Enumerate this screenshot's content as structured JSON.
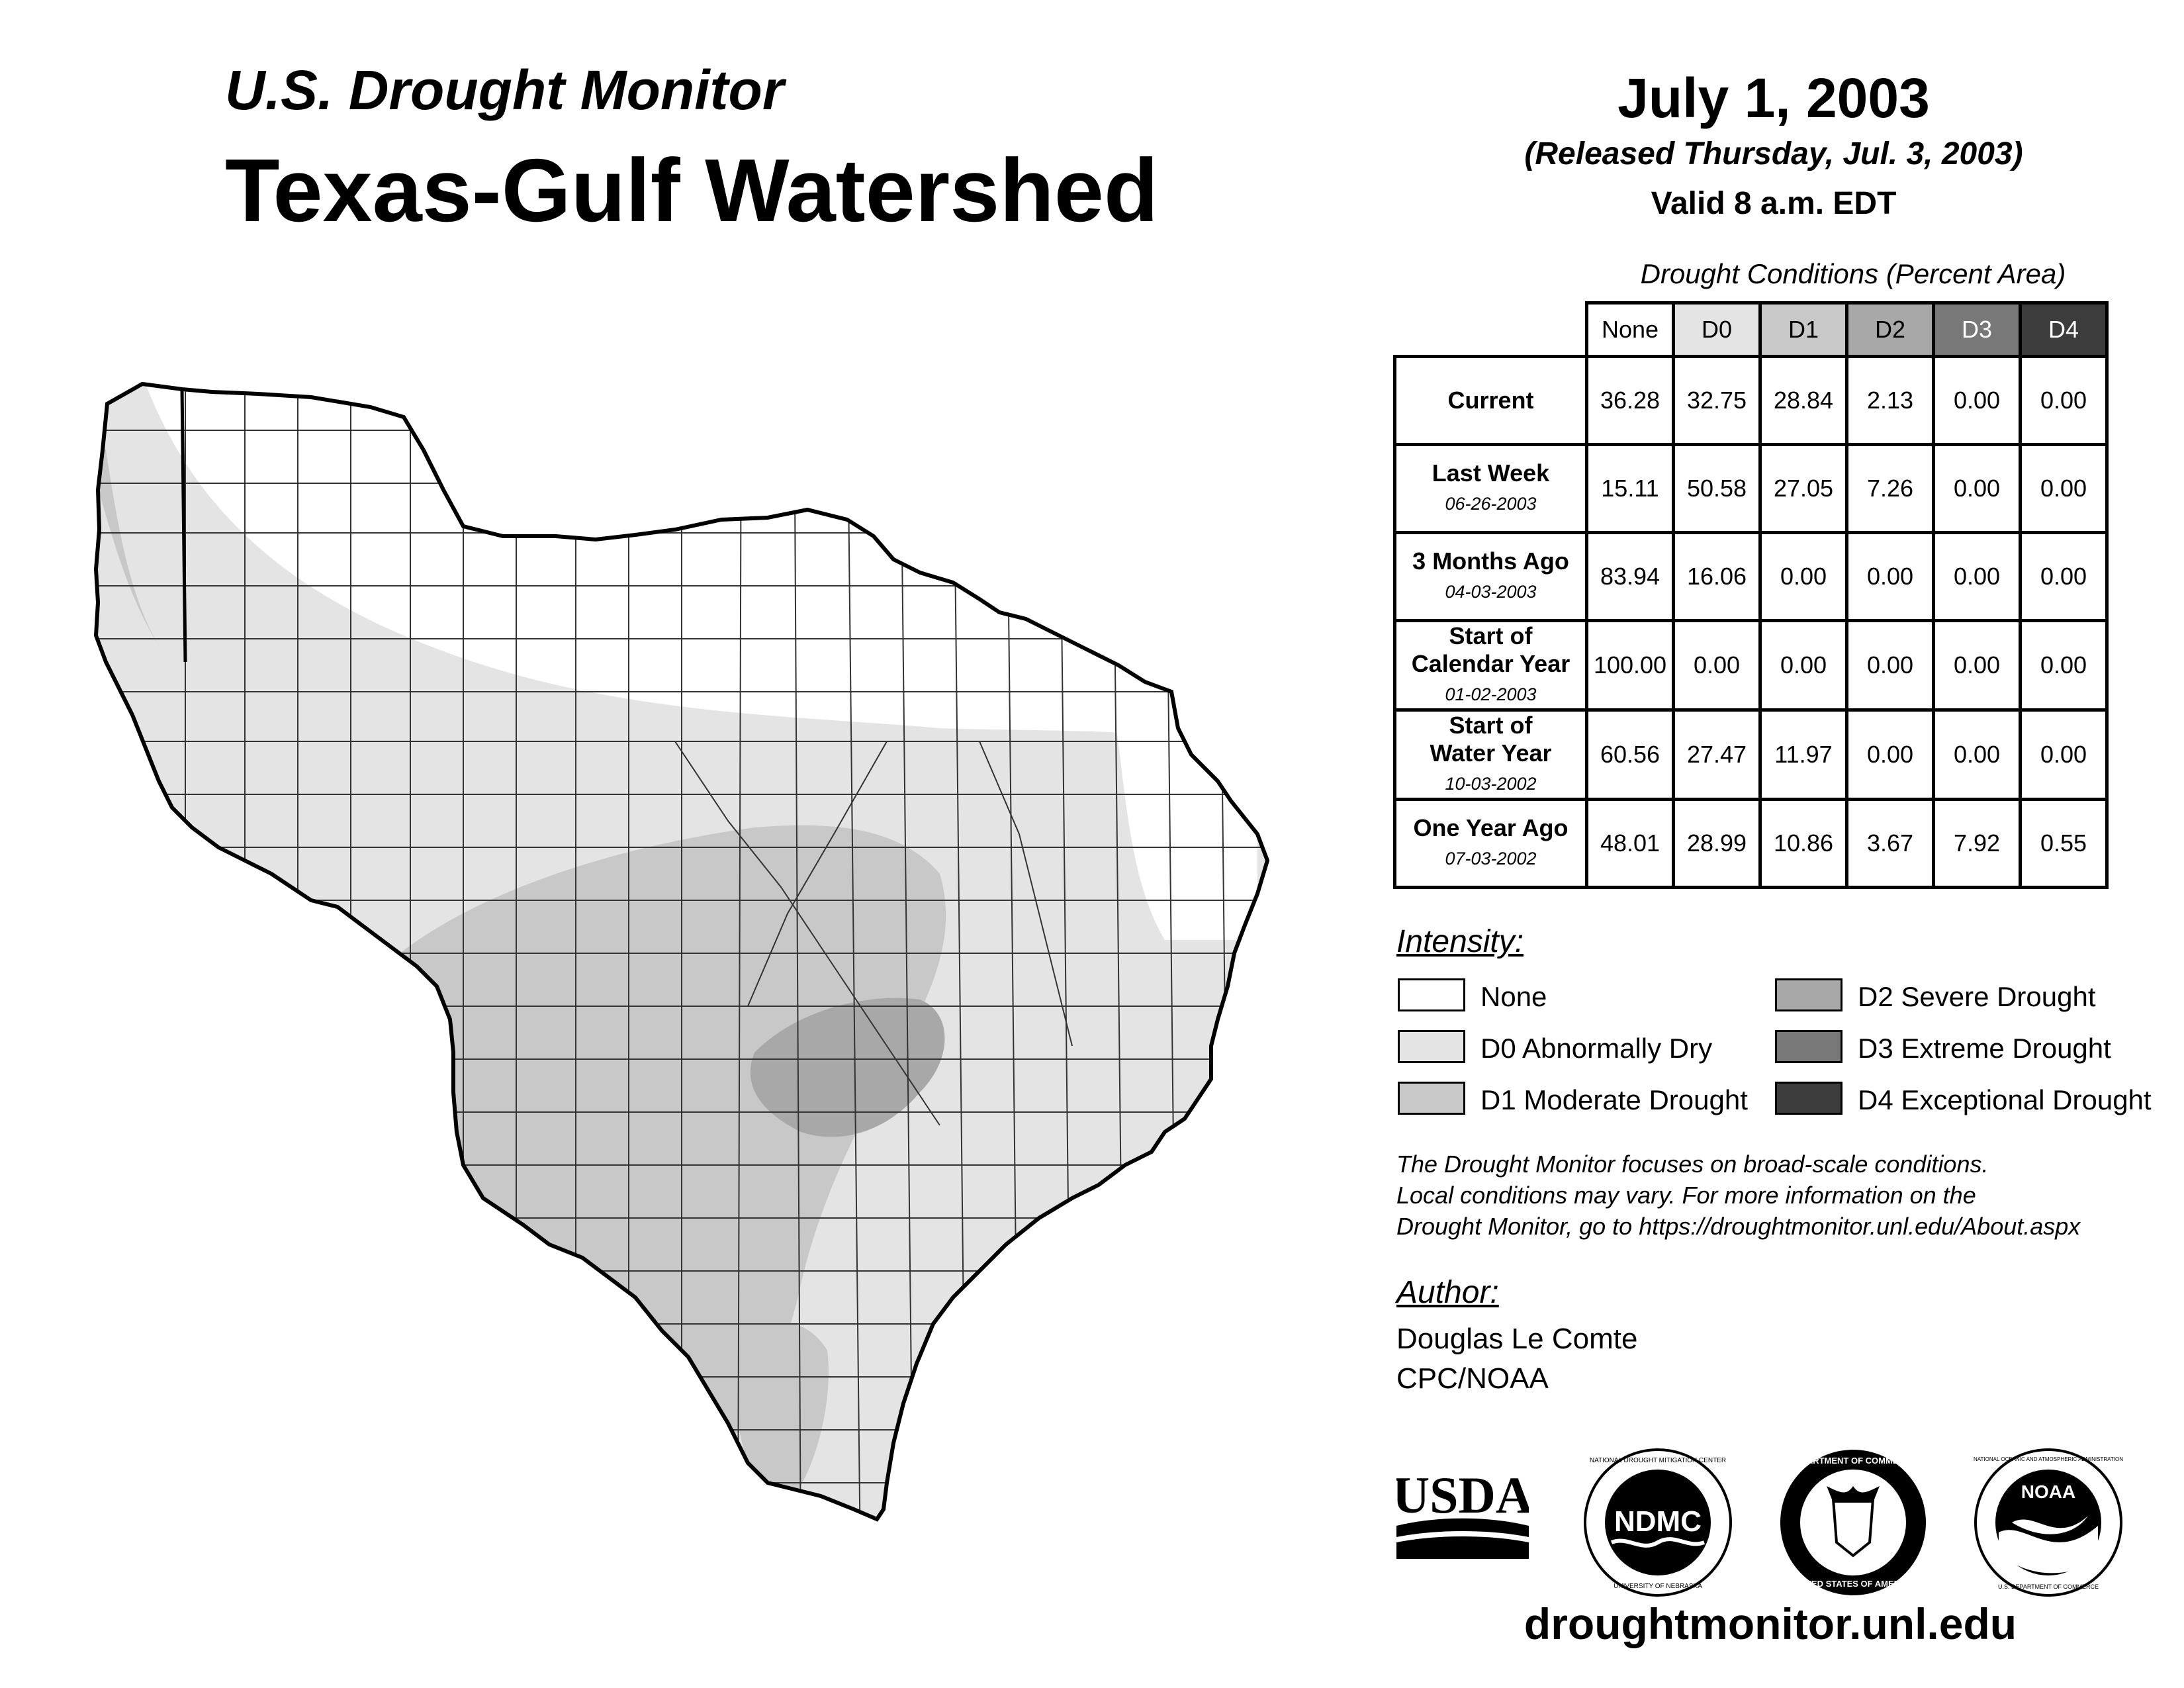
{
  "header": {
    "supertitle": "U.S. Drought Monitor",
    "title": "Texas-Gulf Watershed",
    "date": "July 1, 2003",
    "released": "(Released Thursday, Jul. 3, 2003)",
    "valid": "Valid 8 a.m. EDT"
  },
  "table": {
    "caption": "Drought Conditions (Percent Area)",
    "columns": [
      "None",
      "D0",
      "D1",
      "D2",
      "D3",
      "D4"
    ],
    "rows": [
      {
        "label": "Current",
        "date": "",
        "values": [
          "36.28",
          "32.75",
          "28.84",
          "2.13",
          "0.00",
          "0.00"
        ]
      },
      {
        "label": "Last Week",
        "date": "06-26-2003",
        "values": [
          "15.11",
          "50.58",
          "27.05",
          "7.26",
          "0.00",
          "0.00"
        ]
      },
      {
        "label": "3 Months Ago",
        "date": "04-03-2003",
        "values": [
          "83.94",
          "16.06",
          "0.00",
          "0.00",
          "0.00",
          "0.00"
        ]
      },
      {
        "label": "Start of Calendar Year",
        "date": "01-02-2003",
        "values": [
          "100.00",
          "0.00",
          "0.00",
          "0.00",
          "0.00",
          "0.00"
        ]
      },
      {
        "label": "Start of Water Year",
        "date": "10-03-2002",
        "values": [
          "60.56",
          "27.47",
          "11.97",
          "0.00",
          "0.00",
          "0.00"
        ]
      },
      {
        "label": "One Year Ago",
        "date": "07-03-2002",
        "values": [
          "48.01",
          "28.99",
          "10.86",
          "3.67",
          "7.92",
          "0.55"
        ]
      }
    ]
  },
  "legend": {
    "title": "Intensity:",
    "items": [
      {
        "label": "None",
        "color": "#ffffff"
      },
      {
        "label": "D0 Abnormally Dry",
        "color": "#e4e4e4"
      },
      {
        "label": "D1 Moderate Drought",
        "color": "#c8c8c8"
      },
      {
        "label": "D2 Severe Drought",
        "color": "#a8a8a8"
      },
      {
        "label": "D3 Extreme Drought",
        "color": "#787878"
      },
      {
        "label": "D4 Exceptional Drought",
        "color": "#3c3c3c"
      }
    ]
  },
  "note": {
    "line1": "The Drought Monitor focuses on broad-scale conditions.",
    "line2": "Local conditions may vary. For more information on the",
    "line3": "Drought Monitor, go to https://droughtmonitor.unl.edu/About.aspx"
  },
  "author": {
    "title": "Author:",
    "name": "Douglas Le Comte",
    "org": "CPC/NOAA"
  },
  "logos": {
    "usda": "USDA",
    "ndmc": "NDMC",
    "ndmc_ring_top": "NATIONAL DROUGHT MITIGATION CENTER",
    "ndmc_ring_bottom": "UNIVERSITY OF NEBRASKA",
    "doc_ring_top": "DEPARTMENT OF COMMERCE",
    "doc_ring_bottom": "UNITED STATES OF AMERICA",
    "noaa": "NOAA",
    "noaa_ring_top": "NATIONAL OCEANIC AND ATMOSPHERIC ADMINISTRATION",
    "noaa_ring_bottom": "U.S. DEPARTMENT OF COMMERCE"
  },
  "website": "droughtmonitor.unl.edu"
}
